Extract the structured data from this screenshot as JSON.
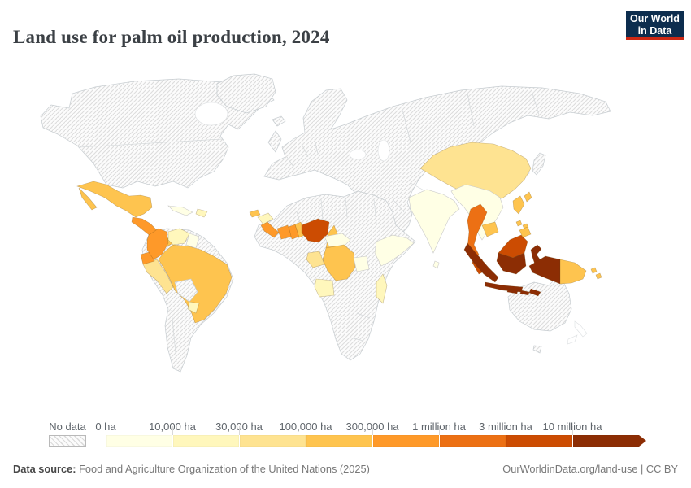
{
  "header": {
    "title": "Land use for palm oil production, 2024",
    "logo": {
      "line1": "Our World",
      "line2": "in Data",
      "bg_color": "#0d2d4e",
      "accent_color": "#cd2814",
      "text_color": "#ffffff"
    }
  },
  "legend": {
    "no_data_label": "No data",
    "tick_labels": [
      "0 ha",
      "10,000 ha",
      "30,000 ha",
      "100,000 ha",
      "300,000 ha",
      "1 million ha",
      "3 million ha",
      "10 million ha"
    ],
    "bin_colors": [
      "#ffffe5",
      "#fff7bc",
      "#fee391",
      "#fec44f",
      "#fe9929",
      "#ec7014",
      "#cc4c02",
      "#8c2d04"
    ],
    "label_color": "#5f656b"
  },
  "footer": {
    "source_label": "Data source:",
    "source_text": " Food and Agriculture Organization of the United Nations (2025)",
    "credit_text": "OurWorldinData.org/land-use | CC BY"
  },
  "chart_data": {
    "type": "heatmap",
    "subtype": "world-choropleth-map",
    "title": "Land use for palm oil production, 2024",
    "unit": "hectares (ha)",
    "legend_bins": [
      "0 ha",
      "10,000 ha",
      "30,000 ha",
      "100,000 ha",
      "300,000 ha",
      "1 million ha",
      "3 million ha",
      "10 million ha"
    ],
    "bin_colors": [
      "#ffffe5",
      "#fff7bc",
      "#fee391",
      "#fec44f",
      "#fe9929",
      "#ec7014",
      "#cc4c02",
      "#8c2d04"
    ],
    "no_data_label": "No data",
    "no_data_style": "diagonal-hatch",
    "countries": [
      {
        "name": "Indonesia",
        "bin_index": 7,
        "bin": "10+ million ha"
      },
      {
        "name": "Malaysia",
        "bin_index": 6,
        "bin": "3–10 million ha"
      },
      {
        "name": "Nigeria",
        "bin_index": 6,
        "bin": "3–10 million ha"
      },
      {
        "name": "Thailand",
        "bin_index": 5,
        "bin": "1–3 million ha"
      },
      {
        "name": "Colombia",
        "bin_index": 4,
        "bin": "300,000 – 1 million ha"
      },
      {
        "name": "Ecuador",
        "bin_index": 4,
        "bin": "300,000 – 1 million ha"
      },
      {
        "name": "Guatemala",
        "bin_index": 4,
        "bin": "300,000 – 1 million ha"
      },
      {
        "name": "Honduras",
        "bin_index": 4,
        "bin": "300,000 – 1 million ha"
      },
      {
        "name": "Nicaragua",
        "bin_index": 4,
        "bin": "300,000 – 1 million ha"
      },
      {
        "name": "Costa Rica",
        "bin_index": 4,
        "bin": "300,000 – 1 million ha"
      },
      {
        "name": "Sierra Leone",
        "bin_index": 4,
        "bin": "300,000 – 1 million ha"
      },
      {
        "name": "Liberia",
        "bin_index": 4,
        "bin": "300,000 – 1 million ha"
      },
      {
        "name": "Côte d'Ivoire",
        "bin_index": 4,
        "bin": "300,000 – 1 million ha"
      },
      {
        "name": "Ghana",
        "bin_index": 4,
        "bin": "300,000 – 1 million ha"
      },
      {
        "name": "Mexico",
        "bin_index": 3,
        "bin": "100,000 – 300,000 ha"
      },
      {
        "name": "Brazil",
        "bin_index": 3,
        "bin": "100,000 – 300,000 ha"
      },
      {
        "name": "Panama",
        "bin_index": 3,
        "bin": "100,000 – 300,000 ha"
      },
      {
        "name": "Benin",
        "bin_index": 3,
        "bin": "100,000 – 300,000 ha"
      },
      {
        "name": "Togo",
        "bin_index": 3,
        "bin": "100,000 – 300,000 ha"
      },
      {
        "name": "Senegal",
        "bin_index": 3,
        "bin": "100,000 – 300,000 ha"
      },
      {
        "name": "Cameroon",
        "bin_index": 3,
        "bin": "100,000 – 300,000 ha"
      },
      {
        "name": "Democratic Republic of Congo",
        "bin_index": 3,
        "bin": "100,000 – 300,000 ha"
      },
      {
        "name": "Cambodia",
        "bin_index": 3,
        "bin": "100,000 – 300,000 ha"
      },
      {
        "name": "Philippines",
        "bin_index": 3,
        "bin": "100,000 – 300,000 ha"
      },
      {
        "name": "Taiwan",
        "bin_index": 3,
        "bin": "100,000 – 300,000 ha"
      },
      {
        "name": "Papua New Guinea",
        "bin_index": 3,
        "bin": "100,000 – 300,000 ha"
      },
      {
        "name": "Solomon Islands",
        "bin_index": 3,
        "bin": "100,000 – 300,000 ha"
      },
      {
        "name": "China",
        "bin_index": 2,
        "bin": "30,000 – 100,000 ha"
      },
      {
        "name": "Peru",
        "bin_index": 2,
        "bin": "30,000 – 100,000 ha"
      },
      {
        "name": "Gabon",
        "bin_index": 2,
        "bin": "30,000 – 100,000 ha"
      },
      {
        "name": "Republic of the Congo",
        "bin_index": 2,
        "bin": "30,000 – 100,000 ha"
      },
      {
        "name": "Venezuela",
        "bin_index": 1,
        "bin": "10,000 – 30,000 ha"
      },
      {
        "name": "Paraguay",
        "bin_index": 1,
        "bin": "10,000 – 30,000 ha"
      },
      {
        "name": "Dominican Republic",
        "bin_index": 1,
        "bin": "10,000 – 30,000 ha"
      },
      {
        "name": "Guinea",
        "bin_index": 1,
        "bin": "10,000 – 30,000 ha"
      },
      {
        "name": "Angola",
        "bin_index": 1,
        "bin": "10,000 – 30,000 ha"
      },
      {
        "name": "Madagascar",
        "bin_index": 1,
        "bin": "10,000 – 30,000 ha"
      },
      {
        "name": "Cuba",
        "bin_index": 0,
        "bin": "0 – 10,000 ha"
      },
      {
        "name": "Guyana",
        "bin_index": 0,
        "bin": "0 – 10,000 ha"
      },
      {
        "name": "Suriname",
        "bin_index": 0,
        "bin": "0 – 10,000 ha"
      },
      {
        "name": "Tanzania",
        "bin_index": 0,
        "bin": "0 – 10,000 ha"
      },
      {
        "name": "Central African Republic",
        "bin_index": 0,
        "bin": "0 – 10,000 ha"
      },
      {
        "name": "India",
        "bin_index": 0,
        "bin": "0 – 10,000 ha"
      },
      {
        "name": "Sri Lanka",
        "bin_index": 0,
        "bin": "0 – 10,000 ha"
      },
      {
        "name": "Myanmar",
        "bin_index": 0,
        "bin": "0 – 10,000 ha"
      },
      {
        "name": "Laos",
        "bin_index": 0,
        "bin": "0 – 10,000 ha"
      },
      {
        "name": "Vietnam",
        "bin_index": 0,
        "bin": "0 – 10,000 ha"
      },
      {
        "name": "Ethiopia",
        "bin_index": 0,
        "bin": "0 – 10,000 ha"
      },
      {
        "name": "Somalia",
        "bin_index": 0,
        "bin": "0 – 10,000 ha"
      }
    ]
  }
}
